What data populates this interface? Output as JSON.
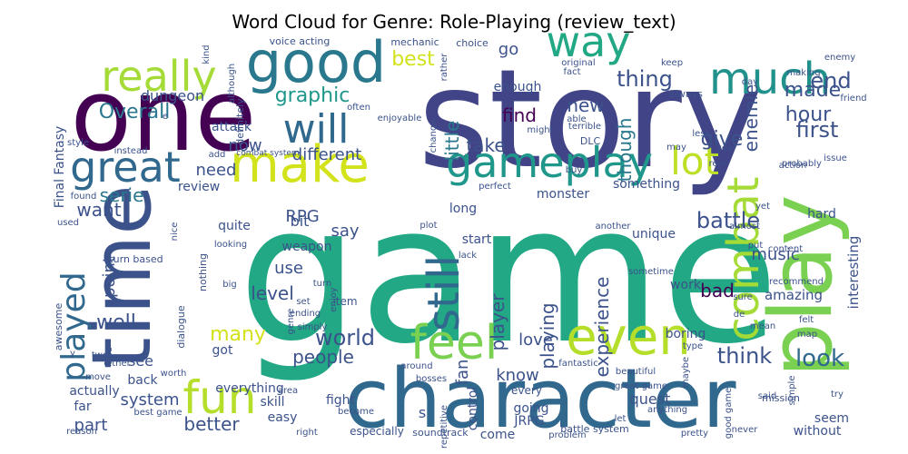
{
  "chart_data": {
    "type": "word_cloud",
    "title": "Word Cloud for Genre: Role-Playing (review_text)",
    "words": [
      {
        "text": "game",
        "weight": 1.0,
        "color": "#22a884"
      },
      {
        "text": "story",
        "weight": 0.9,
        "color": "#414487"
      },
      {
        "text": "one",
        "weight": 0.72,
        "color": "#440154"
      },
      {
        "text": "character",
        "weight": 0.62,
        "color": "#31688e"
      },
      {
        "text": "time",
        "weight": 0.55,
        "color": "#3b528b"
      },
      {
        "text": "play",
        "weight": 0.55,
        "color": "#7ad151"
      },
      {
        "text": "good",
        "weight": 0.42,
        "color": "#2a788e"
      },
      {
        "text": "make",
        "weight": 0.38,
        "color": "#d2e21b"
      },
      {
        "text": "gameplay",
        "weight": 0.36,
        "color": "#1f988b"
      },
      {
        "text": "much",
        "weight": 0.34,
        "color": "#21918c"
      },
      {
        "text": "way",
        "weight": 0.33,
        "color": "#22a884"
      },
      {
        "text": "even",
        "weight": 0.33,
        "color": "#b5de2b"
      },
      {
        "text": "great",
        "weight": 0.32,
        "color": "#31688e"
      },
      {
        "text": "really",
        "weight": 0.3,
        "color": "#a5db36"
      },
      {
        "text": "lot",
        "weight": 0.28,
        "color": "#bddf26"
      },
      {
        "text": "feel",
        "weight": 0.28,
        "color": "#7ad151"
      },
      {
        "text": "fun",
        "weight": 0.27,
        "color": "#b5de2b"
      },
      {
        "text": "combat",
        "weight": 0.27,
        "color": "#a5db36"
      },
      {
        "text": "will",
        "weight": 0.25,
        "color": "#31688e"
      },
      {
        "text": "still",
        "weight": 0.24,
        "color": "#31688e"
      },
      {
        "text": "played",
        "weight": 0.22,
        "color": "#31688e"
      },
      {
        "text": "end",
        "weight": 0.15,
        "color": "#3b528b"
      },
      {
        "text": "thing",
        "weight": 0.14,
        "color": "#3b528b"
      },
      {
        "text": "graphic",
        "weight": 0.14,
        "color": "#1f988b"
      },
      {
        "text": "best",
        "weight": 0.14,
        "color": "#d2e21b"
      },
      {
        "text": "made",
        "weight": 0.14,
        "color": "#3b528b"
      },
      {
        "text": "hour",
        "weight": 0.14,
        "color": "#3b528b"
      },
      {
        "text": "first",
        "weight": 0.14,
        "color": "#3b528b"
      },
      {
        "text": "give",
        "weight": 0.14,
        "color": "#3b528b"
      },
      {
        "text": "world",
        "weight": 0.14,
        "color": "#3b528b"
      },
      {
        "text": "look",
        "weight": 0.14,
        "color": "#31688e"
      },
      {
        "text": "think",
        "weight": 0.13,
        "color": "#3b528b"
      },
      {
        "text": "battle",
        "weight": 0.13,
        "color": "#3b528b"
      },
      {
        "text": "well",
        "weight": 0.13,
        "color": "#3b528b"
      },
      {
        "text": "many",
        "weight": 0.13,
        "color": "#d2e21b"
      },
      {
        "text": "Overall",
        "weight": 0.12,
        "color": "#2a788e"
      },
      {
        "text": "find",
        "weight": 0.12,
        "color": "#440154"
      },
      {
        "text": "new",
        "weight": 0.12,
        "color": "#3b528b"
      },
      {
        "text": "little",
        "weight": 0.12,
        "color": "#2a788e"
      },
      {
        "text": "though",
        "weight": 0.12,
        "color": "#2a788e"
      },
      {
        "text": "serie",
        "weight": 0.12,
        "color": "#2a788e"
      },
      {
        "text": "want",
        "weight": 0.12,
        "color": "#3b528b"
      },
      {
        "text": "player",
        "weight": 0.12,
        "color": "#3b528b"
      },
      {
        "text": "playing",
        "weight": 0.12,
        "color": "#3b528b"
      },
      {
        "text": "level",
        "weight": 0.12,
        "color": "#3b528b"
      },
      {
        "text": "better",
        "weight": 0.12,
        "color": "#3b528b"
      },
      {
        "text": "people",
        "weight": 0.12,
        "color": "#3b528b"
      },
      {
        "text": "bad",
        "weight": 0.12,
        "color": "#440154"
      },
      {
        "text": "experience",
        "weight": 0.11,
        "color": "#3b528b"
      },
      {
        "text": "love",
        "weight": 0.11,
        "color": "#3b528b"
      },
      {
        "text": "take",
        "weight": 0.11,
        "color": "#3b528b"
      },
      {
        "text": "go",
        "weight": 0.11,
        "color": "#3b528b"
      },
      {
        "text": "enemie",
        "weight": 0.11,
        "color": "#3b528b"
      },
      {
        "text": "music",
        "weight": 0.11,
        "color": "#3b528b"
      },
      {
        "text": "need",
        "weight": 0.11,
        "color": "#3b528b"
      },
      {
        "text": "point",
        "weight": 0.11,
        "color": "#3b528b"
      },
      {
        "text": "use",
        "weight": 0.11,
        "color": "#3b528b"
      },
      {
        "text": "RPG",
        "weight": 0.11,
        "color": "#3b528b"
      },
      {
        "text": "say",
        "weight": 0.11,
        "color": "#3b528b"
      },
      {
        "text": "different",
        "weight": 0.1,
        "color": "#3b528b"
      },
      {
        "text": "now",
        "weight": 0.1,
        "color": "#3b528b"
      },
      {
        "text": "part",
        "weight": 0.1,
        "color": "#3b528b"
      },
      {
        "text": "system",
        "weight": 0.1,
        "color": "#3b528b"
      },
      {
        "text": "know",
        "weight": 0.1,
        "color": "#3b528b"
      },
      {
        "text": "fan",
        "weight": 0.1,
        "color": "#3b528b"
      },
      {
        "text": "dungeon",
        "weight": 0.1,
        "color": "#3b528b"
      },
      {
        "text": "quest",
        "weight": 0.1,
        "color": "#3b528b"
      },
      {
        "text": "bit",
        "weight": 0.1,
        "color": "#3b528b"
      },
      {
        "text": "see",
        "weight": 0.1,
        "color": "#3b528b"
      },
      {
        "text": "amazing",
        "weight": 0.09,
        "color": "#3b528b"
      },
      {
        "text": "interesting",
        "weight": 0.09,
        "color": "#3b528b"
      },
      {
        "text": "something",
        "weight": 0.09,
        "color": "#3b528b"
      },
      {
        "text": "hard",
        "weight": 0.09,
        "color": "#3b528b"
      },
      {
        "text": "unique",
        "weight": 0.09,
        "color": "#3b528b"
      },
      {
        "text": "attack",
        "weight": 0.09,
        "color": "#3b528b"
      },
      {
        "text": "review",
        "weight": 0.09,
        "color": "#3b528b"
      },
      {
        "text": "long",
        "weight": 0.09,
        "color": "#3b528b"
      },
      {
        "text": "start",
        "weight": 0.09,
        "color": "#3b528b"
      },
      {
        "text": "monster",
        "weight": 0.09,
        "color": "#3b528b"
      },
      {
        "text": "everything",
        "weight": 0.09,
        "color": "#3b528b"
      },
      {
        "text": "back",
        "weight": 0.09,
        "color": "#3b528b"
      },
      {
        "text": "actually",
        "weight": 0.09,
        "color": "#3b528b"
      },
      {
        "text": "got",
        "weight": 0.09,
        "color": "#3b528b"
      },
      {
        "text": "boring",
        "weight": 0.09,
        "color": "#3b528b"
      },
      {
        "text": "work",
        "weight": 0.09,
        "color": "#3b528b"
      },
      {
        "text": "weapon",
        "weight": 0.09,
        "color": "#3b528b"
      },
      {
        "text": "quite",
        "weight": 0.09,
        "color": "#3b528b"
      },
      {
        "text": "skill",
        "weight": 0.09,
        "color": "#3b528b"
      },
      {
        "text": "easy",
        "weight": 0.09,
        "color": "#3b528b"
      },
      {
        "text": "fight",
        "weight": 0.09,
        "color": "#3b528b"
      },
      {
        "text": "going",
        "weight": 0.09,
        "color": "#3b528b"
      },
      {
        "text": "seem",
        "weight": 0.09,
        "color": "#3b528b"
      },
      {
        "text": "without",
        "weight": 0.09,
        "color": "#3b528b"
      },
      {
        "text": "enough",
        "weight": 0.08,
        "color": "#3b528b"
      },
      {
        "text": "far",
        "weight": 0.08,
        "color": "#3b528b"
      },
      {
        "text": "come",
        "weight": 0.08,
        "color": "#3b528b"
      },
      {
        "text": "control",
        "weight": 0.08,
        "color": "#3b528b"
      },
      {
        "text": "JRPG",
        "weight": 0.08,
        "color": "#3b528b"
      },
      {
        "text": "Final Fantasy",
        "weight": 0.07,
        "color": "#3b528b"
      },
      {
        "text": "item",
        "weight": 0.07,
        "color": "#3b528b"
      },
      {
        "text": "every",
        "weight": 0.07,
        "color": "#3b528b"
      },
      {
        "text": "especially",
        "weight": 0.07,
        "color": "#3b528b"
      },
      {
        "text": "voice acting",
        "weight": 0.06,
        "color": "#3b528b"
      },
      {
        "text": "mechanic",
        "weight": 0.06,
        "color": "#3b528b"
      },
      {
        "text": "choice",
        "weight": 0.06,
        "color": "#3b528b"
      },
      {
        "text": "DLC",
        "weight": 0.06,
        "color": "#3b528b"
      },
      {
        "text": "always",
        "weight": 0.06,
        "color": "#3b528b"
      },
      {
        "text": "definitely",
        "weight": 0.06,
        "color": "#3b528b"
      },
      {
        "text": "nothing",
        "weight": 0.06,
        "color": "#3b528b"
      },
      {
        "text": "dialogue",
        "weight": 0.06,
        "color": "#3b528b"
      },
      {
        "text": "turn based",
        "weight": 0.06,
        "color": "#3b528b"
      },
      {
        "text": "combat system",
        "weight": 0.06,
        "color": "#3b528b"
      },
      {
        "text": "battle system",
        "weight": 0.06,
        "color": "#3b528b"
      },
      {
        "text": "great game",
        "weight": 0.06,
        "color": "#3b528b"
      },
      {
        "text": "best game",
        "weight": 0.06,
        "color": "#3b528b"
      },
      {
        "text": "good game",
        "weight": 0.06,
        "color": "#3b528b"
      },
      {
        "text": "soundtrack",
        "weight": 0.06,
        "color": "#3b528b"
      },
      {
        "text": "awesome",
        "weight": 0.06,
        "color": "#3b528b"
      },
      {
        "text": "beautiful",
        "weight": 0.06,
        "color": "#3b528b"
      },
      {
        "text": "fantastic",
        "weight": 0.06,
        "color": "#3b528b"
      },
      {
        "text": "repetitive",
        "weight": 0.06,
        "color": "#3b528b"
      },
      {
        "text": "mission",
        "weight": 0.06,
        "color": "#3b528b"
      },
      {
        "text": "enjoyable",
        "weight": 0.06,
        "color": "#3b528b"
      },
      {
        "text": "original",
        "weight": 0.06,
        "color": "#3b528b"
      },
      {
        "text": "keep",
        "weight": 0.06,
        "color": "#3b528b"
      },
      {
        "text": "issue",
        "weight": 0.06,
        "color": "#3b528b"
      },
      {
        "text": "sometime",
        "weight": 0.06,
        "color": "#3b528b"
      },
      {
        "text": "recommend",
        "weight": 0.06,
        "color": "#3b528b"
      },
      {
        "text": "perfect",
        "weight": 0.06,
        "color": "#3b528b"
      },
      {
        "text": "anything",
        "weight": 0.06,
        "color": "#3b528b"
      },
      {
        "text": "problem",
        "weight": 0.06,
        "color": "#3b528b"
      },
      {
        "text": "pretty",
        "weight": 0.06,
        "color": "#3b528b"
      },
      {
        "text": "never",
        "weight": 0.06,
        "color": "#3b528b"
      },
      {
        "text": "terrible",
        "weight": 0.06,
        "color": "#3b528b"
      },
      {
        "text": "probably",
        "weight": 0.06,
        "color": "#3b528b"
      },
      {
        "text": "enjoy",
        "weight": 0.06,
        "color": "#3b528b"
      },
      {
        "text": "ending",
        "weight": 0.06,
        "color": "#3b528b"
      },
      {
        "text": "simply",
        "weight": 0.06,
        "color": "#3b528b"
      },
      {
        "text": "around",
        "weight": 0.06,
        "color": "#3b528b"
      },
      {
        "text": "bosses",
        "weight": 0.06,
        "color": "#3b528b"
      },
      {
        "text": "either",
        "weight": 0.06,
        "color": "#3b528b"
      },
      {
        "text": "looking",
        "weight": 0.06,
        "color": "#3b528b"
      },
      {
        "text": "content",
        "weight": 0.06,
        "color": "#3b528b"
      },
      {
        "text": "instead",
        "weight": 0.06,
        "color": "#3b528b"
      },
      {
        "text": "another",
        "weight": 0.06,
        "color": "#3b528b"
      },
      {
        "text": "friend",
        "weight": 0.06,
        "color": "#3b528b"
      },
      {
        "text": "making",
        "weight": 0.06,
        "color": "#3b528b"
      },
      {
        "text": "enemy",
        "weight": 0.06,
        "color": "#3b528b"
      },
      {
        "text": "although",
        "weight": 0.06,
        "color": "#3b528b"
      },
      {
        "text": "rather",
        "weight": 0.06,
        "color": "#3b528b"
      },
      {
        "text": "action",
        "weight": 0.06,
        "color": "#3b528b"
      },
      {
        "text": "almost",
        "weight": 0.06,
        "color": "#3b528b"
      },
      {
        "text": "change",
        "weight": 0.06,
        "color": "#3b528b"
      },
      {
        "text": "become",
        "weight": 0.06,
        "color": "#3b528b"
      },
      {
        "text": "simple",
        "weight": 0.06,
        "color": "#3b528b"
      },
      {
        "text": "maybe",
        "weight": 0.06,
        "color": "#3b528b"
      },
      {
        "text": "reason",
        "weight": 0.06,
        "color": "#3b528b"
      },
      {
        "text": "right",
        "weight": 0.06,
        "color": "#3b528b"
      },
      {
        "text": "worth",
        "weight": 0.06,
        "color": "#3b528b"
      },
      {
        "text": "style",
        "weight": 0.05,
        "color": "#3b528b"
      },
      {
        "text": "kind",
        "weight": 0.05,
        "color": "#3b528b"
      },
      {
        "text": "often",
        "weight": 0.05,
        "color": "#3b528b"
      },
      {
        "text": "might",
        "weight": 0.05,
        "color": "#3b528b"
      },
      {
        "text": "able",
        "weight": 0.05,
        "color": "#3b528b"
      },
      {
        "text": "fact",
        "weight": 0.05,
        "color": "#3b528b"
      },
      {
        "text": "day",
        "weight": 0.05,
        "color": "#3b528b"
      },
      {
        "text": "less",
        "weight": 0.05,
        "color": "#3b528b"
      },
      {
        "text": "may",
        "weight": 0.05,
        "color": "#3b528b"
      },
      {
        "text": "year",
        "weight": 0.05,
        "color": "#3b528b"
      },
      {
        "text": "real",
        "weight": 0.05,
        "color": "#3b528b"
      },
      {
        "text": "yet",
        "weight": 0.05,
        "color": "#3b528b"
      },
      {
        "text": "put",
        "weight": 0.05,
        "color": "#3b528b"
      },
      {
        "text": "buy",
        "weight": 0.05,
        "color": "#3b528b"
      },
      {
        "text": "plot",
        "weight": 0.05,
        "color": "#3b528b"
      },
      {
        "text": "lack",
        "weight": 0.05,
        "color": "#3b528b"
      },
      {
        "text": "used",
        "weight": 0.05,
        "color": "#3b528b"
      },
      {
        "text": "found",
        "weight": 0.05,
        "color": "#3b528b"
      },
      {
        "text": "add",
        "weight": 0.05,
        "color": "#3b528b"
      },
      {
        "text": "nice",
        "weight": 0.05,
        "color": "#3b528b"
      },
      {
        "text": "title",
        "weight": 0.05,
        "color": "#3b528b"
      },
      {
        "text": "turn",
        "weight": 0.05,
        "color": "#3b528b"
      },
      {
        "text": "big",
        "weight": 0.05,
        "color": "#3b528b"
      },
      {
        "text": "set",
        "weight": 0.05,
        "color": "#3b528b"
      },
      {
        "text": "genre",
        "weight": 0.05,
        "color": "#3b528b"
      },
      {
        "text": "two",
        "weight": 0.05,
        "color": "#3b528b"
      },
      {
        "text": "move",
        "weight": 0.05,
        "color": "#3b528b"
      },
      {
        "text": "area",
        "weight": 0.05,
        "color": "#3b528b"
      },
      {
        "text": "let",
        "weight": 0.05,
        "color": "#3b528b"
      },
      {
        "text": "sure",
        "weight": 0.05,
        "color": "#3b528b"
      },
      {
        "text": "de",
        "weight": 0.05,
        "color": "#3b528b"
      },
      {
        "text": "mean",
        "weight": 0.05,
        "color": "#3b528b"
      },
      {
        "text": "felt",
        "weight": 0.05,
        "color": "#3b528b"
      },
      {
        "text": "map",
        "weight": 0.05,
        "color": "#3b528b"
      },
      {
        "text": "type",
        "weight": 0.05,
        "color": "#3b528b"
      },
      {
        "text": "said",
        "weight": 0.05,
        "color": "#3b528b"
      },
      {
        "text": "try",
        "weight": 0.05,
        "color": "#3b528b"
      },
      {
        "text": "e",
        "weight": 0.04,
        "color": "#3b528b"
      },
      {
        "text": "s",
        "weight": 0.08,
        "color": "#3b528b"
      },
      {
        "text": "y",
        "weight": 0.04,
        "color": "#3b528b"
      }
    ]
  }
}
